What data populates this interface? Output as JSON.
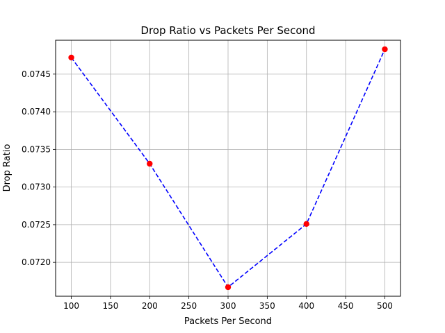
{
  "chart_data": {
    "type": "line",
    "title": "Drop Ratio vs Packets Per Second",
    "xlabel": "Packets Per Second",
    "ylabel": "Drop Ratio",
    "x": [
      100,
      200,
      300,
      400,
      500
    ],
    "y": [
      0.07472,
      0.07331,
      0.07167,
      0.07251,
      0.07483
    ],
    "xlim": [
      80,
      520
    ],
    "ylim": [
      0.07155,
      0.07495
    ],
    "xticks": [
      100,
      150,
      200,
      250,
      300,
      350,
      400,
      450,
      500
    ],
    "xtick_labels": [
      "100",
      "150",
      "200",
      "250",
      "300",
      "350",
      "400",
      "450",
      "500"
    ],
    "yticks": [
      0.072,
      0.0725,
      0.073,
      0.0735,
      0.074,
      0.0745
    ],
    "ytick_labels": [
      "0.0720",
      "0.0725",
      "0.0730",
      "0.0735",
      "0.0740",
      "0.0745"
    ],
    "grid": true,
    "line_style": "dashed",
    "colors": {
      "line": "#0000ff",
      "marker": "#ff0000",
      "grid": "#b0b0b0"
    }
  }
}
